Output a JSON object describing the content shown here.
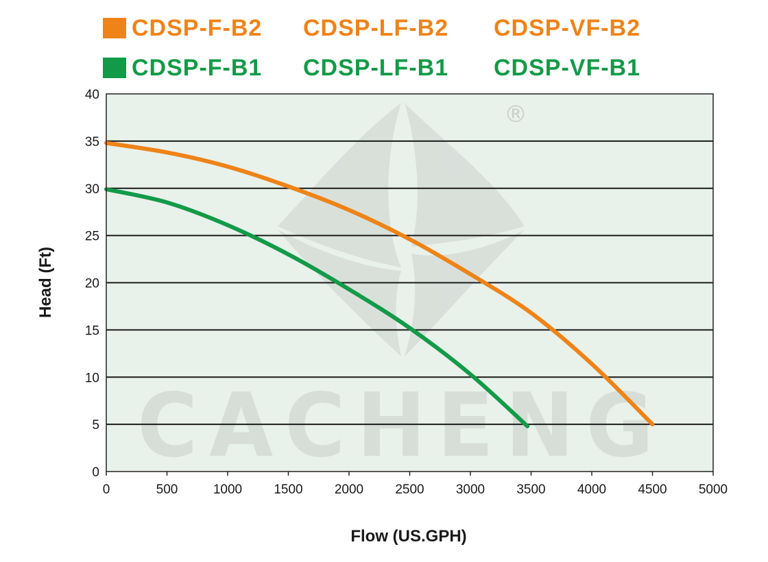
{
  "legend": {
    "b2_color": "#ee8317",
    "b1_color": "#139a48",
    "row1": [
      "CDSP-F-B2",
      "CDSP-LF-B2",
      "CDSP-VF-B2"
    ],
    "row2": [
      "CDSP-F-B1",
      "CDSP-LF-B1",
      "CDSP-VF-B1"
    ]
  },
  "watermark": {
    "text": "CACHENG",
    "registered": "®",
    "logo_icon": "cacheng-leaf-logo-icon"
  },
  "chart_data": {
    "type": "line",
    "xlabel": "Flow (US.GPH)",
    "ylabel": "Head (Ft)",
    "xlim": [
      0,
      5000
    ],
    "ylim": [
      0,
      40
    ],
    "x_ticks": [
      0,
      500,
      1000,
      1500,
      2000,
      2500,
      3000,
      3500,
      4000,
      4500,
      5000
    ],
    "y_ticks": [
      0,
      5,
      10,
      15,
      20,
      25,
      30,
      35,
      40
    ],
    "grid": "horizontal",
    "background": "#e9f1eb",
    "series": [
      {
        "name": "CDSP-F-B2 / CDSP-LF-B2 / CDSP-VF-B2",
        "color": "#ee8317",
        "x": [
          0,
          500,
          1000,
          1500,
          2000,
          2500,
          3000,
          3500,
          4000,
          4500
        ],
        "y": [
          34.8,
          33.8,
          32.3,
          30.2,
          27.7,
          24.6,
          20.9,
          16.8,
          11.4,
          5.0
        ]
      },
      {
        "name": "CDSP-F-B1 / CDSP-LF-B1 / CDSP-VF-B1",
        "color": "#139a48",
        "x": [
          0,
          500,
          1000,
          1500,
          2000,
          2500,
          3000,
          3470
        ],
        "y": [
          29.9,
          28.5,
          26.1,
          23.0,
          19.3,
          15.2,
          10.3,
          4.8
        ]
      }
    ]
  }
}
